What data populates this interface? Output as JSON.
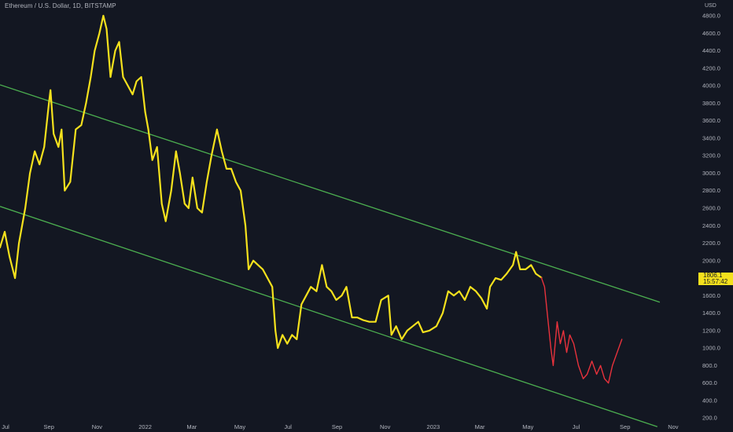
{
  "title": "Ethereum / U.S. Dollar, 1D, BITSTAMP",
  "currency": "USD",
  "last_price": "1806.1",
  "countdown": "15:57:42",
  "colors": {
    "background": "#131722",
    "price_line": "#f5e11d",
    "projection_line": "#e8323c",
    "channel": "#4caf50",
    "axis_text": "#b2b5be",
    "tag_bg": "#f5e11d"
  },
  "chart_data": {
    "type": "line",
    "title": "Ethereum / U.S. Dollar, 1D, BITSTAMP",
    "ylabel": "USD",
    "ylim": [
      130,
      4980
    ],
    "yticks": [
      200,
      400,
      600,
      800,
      1000,
      1200,
      1400,
      1600,
      1800,
      2000,
      2200,
      2400,
      2600,
      2800,
      3000,
      3200,
      3400,
      3600,
      3800,
      4000,
      4200,
      4400,
      4600,
      4800
    ],
    "ytick_labels": [
      "200.0",
      "400.0",
      "600.0",
      "800.0",
      "1000.0",
      "1200.0",
      "1400.0",
      "1600.0",
      "1800.0",
      "2000.0",
      "2200.0",
      "2400.0",
      "2600.0",
      "2800.0",
      "3000.0",
      "3200.0",
      "3400.0",
      "3600.0",
      "3800.0",
      "4000.0",
      "4200.0",
      "4400.0",
      "4600.0",
      "4800.0"
    ],
    "xlim": [
      "2021-07-01",
      "2023-11-25"
    ],
    "xticks": [
      "2021-07-01",
      "2021-09-01",
      "2021-11-01",
      "2022-01-01",
      "2022-03-01",
      "2022-05-01",
      "2022-07-01",
      "2022-09-01",
      "2022-11-01",
      "2023-01-01",
      "2023-03-01",
      "2023-05-01",
      "2023-07-01",
      "2023-09-01",
      "2023-11-01"
    ],
    "xtick_labels": [
      "Jul",
      "Sep",
      "Nov",
      "2022",
      "Mar",
      "May",
      "Jul",
      "Sep",
      "Nov",
      "2023",
      "Mar",
      "May",
      "Jul",
      "Sep",
      "Nov"
    ],
    "grid": false,
    "series": [
      {
        "role": "price",
        "color": "#f5e11d",
        "points": [
          [
            "2021-07-01",
            2150
          ],
          [
            "2021-07-07",
            2330
          ],
          [
            "2021-07-13",
            2050
          ],
          [
            "2021-07-20",
            1800
          ],
          [
            "2021-07-25",
            2200
          ],
          [
            "2021-08-02",
            2600
          ],
          [
            "2021-08-08",
            3000
          ],
          [
            "2021-08-14",
            3250
          ],
          [
            "2021-08-20",
            3100
          ],
          [
            "2021-08-26",
            3300
          ],
          [
            "2021-09-01",
            3800
          ],
          [
            "2021-09-03",
            3950
          ],
          [
            "2021-09-07",
            3450
          ],
          [
            "2021-09-13",
            3300
          ],
          [
            "2021-09-17",
            3500
          ],
          [
            "2021-09-21",
            2800
          ],
          [
            "2021-09-28",
            2900
          ],
          [
            "2021-10-05",
            3500
          ],
          [
            "2021-10-12",
            3550
          ],
          [
            "2021-10-18",
            3800
          ],
          [
            "2021-10-24",
            4100
          ],
          [
            "2021-10-29",
            4400
          ],
          [
            "2021-11-04",
            4600
          ],
          [
            "2021-11-09",
            4800
          ],
          [
            "2021-11-13",
            4650
          ],
          [
            "2021-11-18",
            4100
          ],
          [
            "2021-11-24",
            4400
          ],
          [
            "2021-11-29",
            4500
          ],
          [
            "2021-12-04",
            4100
          ],
          [
            "2021-12-10",
            4000
          ],
          [
            "2021-12-16",
            3900
          ],
          [
            "2021-12-21",
            4050
          ],
          [
            "2021-12-27",
            4100
          ],
          [
            "2022-01-01",
            3700
          ],
          [
            "2022-01-05",
            3500
          ],
          [
            "2022-01-10",
            3150
          ],
          [
            "2022-01-16",
            3300
          ],
          [
            "2022-01-22",
            2650
          ],
          [
            "2022-01-27",
            2450
          ],
          [
            "2022-02-03",
            2800
          ],
          [
            "2022-02-09",
            3250
          ],
          [
            "2022-02-14",
            3000
          ],
          [
            "2022-02-20",
            2650
          ],
          [
            "2022-02-25",
            2600
          ],
          [
            "2022-03-02",
            2950
          ],
          [
            "2022-03-08",
            2600
          ],
          [
            "2022-03-14",
            2550
          ],
          [
            "2022-03-20",
            2900
          ],
          [
            "2022-03-26",
            3200
          ],
          [
            "2022-04-02",
            3500
          ],
          [
            "2022-04-08",
            3250
          ],
          [
            "2022-04-14",
            3050
          ],
          [
            "2022-04-20",
            3050
          ],
          [
            "2022-04-26",
            2900
          ],
          [
            "2022-05-02",
            2800
          ],
          [
            "2022-05-08",
            2400
          ],
          [
            "2022-05-12",
            1900
          ],
          [
            "2022-05-18",
            2000
          ],
          [
            "2022-05-24",
            1950
          ],
          [
            "2022-05-30",
            1900
          ],
          [
            "2022-06-05",
            1800
          ],
          [
            "2022-06-11",
            1700
          ],
          [
            "2022-06-15",
            1200
          ],
          [
            "2022-06-18",
            1000
          ],
          [
            "2022-06-24",
            1150
          ],
          [
            "2022-06-30",
            1050
          ],
          [
            "2022-07-06",
            1150
          ],
          [
            "2022-07-12",
            1100
          ],
          [
            "2022-07-18",
            1500
          ],
          [
            "2022-07-24",
            1600
          ],
          [
            "2022-07-30",
            1700
          ],
          [
            "2022-08-06",
            1650
          ],
          [
            "2022-08-13",
            1950
          ],
          [
            "2022-08-19",
            1700
          ],
          [
            "2022-08-25",
            1650
          ],
          [
            "2022-08-31",
            1550
          ],
          [
            "2022-09-07",
            1600
          ],
          [
            "2022-09-13",
            1700
          ],
          [
            "2022-09-20",
            1350
          ],
          [
            "2022-09-27",
            1350
          ],
          [
            "2022-10-04",
            1320
          ],
          [
            "2022-10-12",
            1300
          ],
          [
            "2022-10-20",
            1300
          ],
          [
            "2022-10-27",
            1550
          ],
          [
            "2022-11-05",
            1600
          ],
          [
            "2022-11-09",
            1150
          ],
          [
            "2022-11-15",
            1250
          ],
          [
            "2022-11-22",
            1100
          ],
          [
            "2022-11-29",
            1200
          ],
          [
            "2022-12-06",
            1250
          ],
          [
            "2022-12-13",
            1300
          ],
          [
            "2022-12-19",
            1180
          ],
          [
            "2022-12-27",
            1200
          ],
          [
            "2023-01-05",
            1250
          ],
          [
            "2023-01-13",
            1400
          ],
          [
            "2023-01-20",
            1650
          ],
          [
            "2023-01-27",
            1600
          ],
          [
            "2023-02-03",
            1650
          ],
          [
            "2023-02-10",
            1550
          ],
          [
            "2023-02-17",
            1700
          ],
          [
            "2023-02-24",
            1650
          ],
          [
            "2023-03-03",
            1570
          ],
          [
            "2023-03-10",
            1450
          ],
          [
            "2023-03-14",
            1700
          ],
          [
            "2023-03-21",
            1800
          ],
          [
            "2023-03-28",
            1780
          ],
          [
            "2023-04-04",
            1850
          ],
          [
            "2023-04-12",
            1950
          ],
          [
            "2023-04-16",
            2100
          ],
          [
            "2023-04-21",
            1900
          ],
          [
            "2023-04-28",
            1900
          ],
          [
            "2023-05-05",
            1950
          ],
          [
            "2023-05-11",
            1850
          ],
          [
            "2023-05-18",
            1806
          ]
        ]
      },
      {
        "role": "projection",
        "color": "#e8323c",
        "points": [
          [
            "2023-05-18",
            1806
          ],
          [
            "2023-05-22",
            1700
          ],
          [
            "2023-05-26",
            1350
          ],
          [
            "2023-05-30",
            1000
          ],
          [
            "2023-06-02",
            800
          ],
          [
            "2023-06-07",
            1300
          ],
          [
            "2023-06-11",
            1050
          ],
          [
            "2023-06-15",
            1200
          ],
          [
            "2023-06-19",
            950
          ],
          [
            "2023-06-23",
            1150
          ],
          [
            "2023-06-28",
            1050
          ],
          [
            "2023-07-04",
            800
          ],
          [
            "2023-07-10",
            650
          ],
          [
            "2023-07-15",
            700
          ],
          [
            "2023-07-21",
            850
          ],
          [
            "2023-07-27",
            700
          ],
          [
            "2023-08-01",
            800
          ],
          [
            "2023-08-06",
            650
          ],
          [
            "2023-08-11",
            600
          ],
          [
            "2023-08-16",
            800
          ],
          [
            "2023-08-22",
            950
          ],
          [
            "2023-08-28",
            1100
          ]
        ]
      }
    ],
    "trendlines": [
      {
        "name": "upper-channel",
        "color": "#4caf50",
        "from": [
          "2021-07-01",
          4010
        ],
        "to": [
          "2023-10-15",
          1525
        ]
      },
      {
        "name": "lower-channel",
        "color": "#4caf50",
        "from": [
          "2021-07-01",
          2620
        ],
        "to": [
          "2023-10-12",
          100
        ]
      }
    ]
  }
}
